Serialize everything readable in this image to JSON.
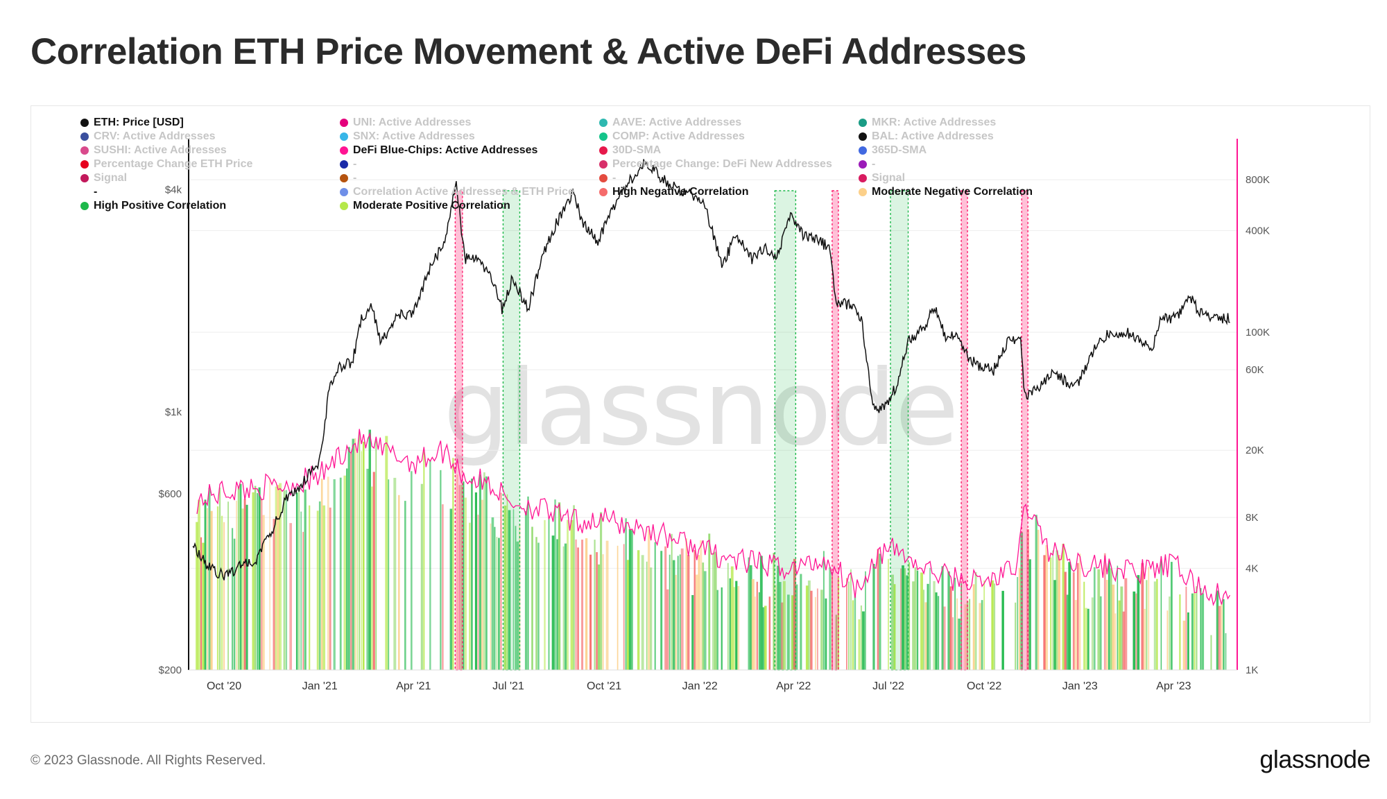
{
  "page": {
    "title": "Correlation ETH Price Movement & Active DeFi Addresses",
    "footer_copyright": "© 2023 Glassnode. All Rights Reserved.",
    "footer_logo": "glassnode",
    "watermark": "glassnode"
  },
  "legend": [
    {
      "label": "ETH: Price [USD]",
      "color": "#111111",
      "active": true
    },
    {
      "label": "UNI: Active Addresses",
      "color": "#e4007c",
      "active": false
    },
    {
      "label": "AAVE: Active Addresses",
      "color": "#2eb8b0",
      "active": false
    },
    {
      "label": "MKR: Active Addresses",
      "color": "#1a9c85",
      "active": false
    },
    {
      "label": "CRV: Active Addresses",
      "color": "#3a4f9e",
      "active": false
    },
    {
      "label": "SNX: Active Addresses",
      "color": "#37b6e8",
      "active": false
    },
    {
      "label": "COMP: Active Addresses",
      "color": "#14c48a",
      "active": false
    },
    {
      "label": "BAL: Active Addresses",
      "color": "#111111",
      "active": false
    },
    {
      "label": "SUSHI: Active Addresses",
      "color": "#d94a8c",
      "active": false
    },
    {
      "label": "DeFi Blue-Chips: Active Addresses",
      "color": "#ff1493",
      "active": true
    },
    {
      "label": "30D-SMA",
      "color": "#e6194b",
      "active": false
    },
    {
      "label": "365D-SMA",
      "color": "#4169e1",
      "active": false
    },
    {
      "label": "Percentage Change ETH Price",
      "color": "#e6001e",
      "active": false
    },
    {
      "label": "-",
      "color": "#1a2aa8",
      "active": false
    },
    {
      "label": "Percentage Change: DeFi New Addresses",
      "color": "#d8306a",
      "active": false
    },
    {
      "label": "-",
      "color": "#9b1bb8",
      "active": false
    },
    {
      "label": "Signal",
      "color": "#c2185b",
      "active": false
    },
    {
      "label": "-",
      "color": "#b5530f",
      "active": false
    },
    {
      "label": "-",
      "color": "#e44b3f",
      "active": false
    },
    {
      "label": "Signal",
      "color": "#d81b60",
      "active": false
    },
    {
      "label": "-",
      "color": null,
      "active": true
    },
    {
      "label": "Correlation Active Addresses & ETH Price",
      "color": "#6f8fe8",
      "active": false
    },
    {
      "label": "High Negative Correlation",
      "color": "#f56b6b",
      "active": true
    },
    {
      "label": "Moderate Negative Correlation",
      "color": "#fcd08a",
      "active": true
    },
    {
      "label": "High Positive Correlation",
      "color": "#1db84a",
      "active": true
    },
    {
      "label": "Moderate Positive Correlation",
      "color": "#b5e84a",
      "active": true
    }
  ],
  "chart_data": {
    "type": "line",
    "title": "Correlation ETH Price Movement & Active DeFi Addresses",
    "x_axis": {
      "ticks": [
        "Oct '20",
        "Jan '21",
        "Apr '21",
        "Jul '21",
        "Oct '21",
        "Jan '22",
        "Apr '22",
        "Jul '22",
        "Oct '22",
        "Jan '23",
        "Apr '23"
      ]
    },
    "y_left": {
      "scale": "log",
      "ticks": [
        "$200",
        "$600",
        "$1k",
        "$4k"
      ],
      "range": [
        200,
        5500
      ]
    },
    "y_right": {
      "scale": "log",
      "ticks": [
        "1K",
        "4K",
        "8K",
        "20K",
        "60K",
        "100K",
        "400K",
        "800K"
      ],
      "range": [
        1000,
        1400000
      ]
    },
    "grid": true,
    "series": [
      {
        "name": "ETH: Price [USD]",
        "color": "#111111",
        "axis": "left",
        "x": [
          "2020-09-01",
          "2020-09-15",
          "2020-10-01",
          "2020-10-15",
          "2020-11-01",
          "2020-11-15",
          "2020-12-01",
          "2020-12-15",
          "2021-01-01",
          "2021-01-10",
          "2021-01-20",
          "2021-02-01",
          "2021-02-10",
          "2021-02-20",
          "2021-03-01",
          "2021-03-15",
          "2021-04-01",
          "2021-04-15",
          "2021-05-01",
          "2021-05-12",
          "2021-05-20",
          "2021-06-01",
          "2021-06-15",
          "2021-06-25",
          "2021-07-05",
          "2021-07-20",
          "2021-08-01",
          "2021-08-15",
          "2021-09-01",
          "2021-09-10",
          "2021-09-25",
          "2021-10-10",
          "2021-10-25",
          "2021-11-10",
          "2021-11-25",
          "2021-12-05",
          "2021-12-20",
          "2022-01-05",
          "2022-01-22",
          "2022-02-05",
          "2022-02-20",
          "2022-03-05",
          "2022-03-15",
          "2022-03-29",
          "2022-04-10",
          "2022-04-25",
          "2022-05-05",
          "2022-05-12",
          "2022-05-25",
          "2022-06-05",
          "2022-06-13",
          "2022-06-18",
          "2022-07-01",
          "2022-07-10",
          "2022-07-20",
          "2022-08-05",
          "2022-08-14",
          "2022-08-25",
          "2022-09-05",
          "2022-09-15",
          "2022-09-25",
          "2022-10-10",
          "2022-10-25",
          "2022-11-05",
          "2022-11-09",
          "2022-11-20",
          "2022-12-05",
          "2022-12-20",
          "2022-12-31",
          "2023-01-10",
          "2023-01-20",
          "2023-02-01",
          "2023-02-15",
          "2023-03-01",
          "2023-03-10",
          "2023-03-20",
          "2023-04-01",
          "2023-04-10",
          "2023-04-16",
          "2023-04-25",
          "2023-05-10",
          "2023-05-25"
        ],
        "values": [
          440,
          380,
          360,
          380,
          400,
          470,
          590,
          640,
          740,
          1150,
          1330,
          1360,
          1780,
          1940,
          1540,
          1820,
          1850,
          2400,
          2900,
          4200,
          2600,
          2600,
          2300,
          1900,
          2300,
          1900,
          2550,
          3200,
          3900,
          3300,
          2900,
          3600,
          4200,
          4800,
          4300,
          4100,
          3900,
          3700,
          2500,
          3000,
          2600,
          2800,
          2600,
          3400,
          3000,
          2900,
          2800,
          2000,
          1950,
          1800,
          1200,
          1000,
          1070,
          1200,
          1550,
          1700,
          1950,
          1600,
          1600,
          1420,
          1330,
          1300,
          1580,
          1580,
          1100,
          1150,
          1280,
          1200,
          1200,
          1400,
          1570,
          1650,
          1640,
          1560,
          1450,
          1800,
          1800,
          1900,
          2090,
          1870,
          1800,
          1800
        ]
      },
      {
        "name": "DeFi Blue-Chips: Active Addresses",
        "color": "#ff1493",
        "axis": "right",
        "x": [
          "2020-09-05",
          "2020-10-01",
          "2020-11-01",
          "2020-12-01",
          "2021-01-01",
          "2021-01-20",
          "2021-02-10",
          "2021-03-01",
          "2021-04-01",
          "2021-05-01",
          "2021-05-20",
          "2021-06-15",
          "2021-07-01",
          "2021-08-01",
          "2021-09-01",
          "2021-10-01",
          "2021-11-01",
          "2021-12-01",
          "2022-01-01",
          "2022-02-01",
          "2022-03-01",
          "2022-04-01",
          "2022-05-01",
          "2022-06-01",
          "2022-06-20",
          "2022-07-10",
          "2022-08-01",
          "2022-09-01",
          "2022-10-01",
          "2022-11-01",
          "2022-11-10",
          "2022-12-01",
          "2023-01-01",
          "2023-02-01",
          "2023-03-01",
          "2023-04-01",
          "2023-05-01",
          "2023-05-25"
        ],
        "values": [
          10000,
          11500,
          12000,
          12500,
          14000,
          19000,
          23000,
          20000,
          17000,
          20000,
          14000,
          12500,
          10000,
          9000,
          7500,
          7800,
          7000,
          6200,
          5200,
          4500,
          4200,
          4000,
          4500,
          3100,
          4800,
          5200,
          4000,
          3500,
          3300,
          4000,
          10000,
          5200,
          4300,
          4000,
          3800,
          4200,
          2900,
          2600
        ]
      }
    ],
    "regions": [
      {
        "type": "High Negative Correlation",
        "start": "2021-05-11",
        "end": "2021-05-18",
        "color": "#ff1e6e"
      },
      {
        "type": "High Positive Correlation",
        "start": "2021-06-26",
        "end": "2021-07-12",
        "color": "#1db84a"
      },
      {
        "type": "High Positive Correlation",
        "start": "2022-03-14",
        "end": "2022-04-03",
        "color": "#1db84a"
      },
      {
        "type": "High Negative Correlation",
        "start": "2022-05-08",
        "end": "2022-05-14",
        "color": "#ff1e6e"
      },
      {
        "type": "High Positive Correlation",
        "start": "2022-07-03",
        "end": "2022-07-20",
        "color": "#1db84a"
      },
      {
        "type": "High Negative Correlation",
        "start": "2022-09-09",
        "end": "2022-09-15",
        "color": "#ff1e6e"
      },
      {
        "type": "High Negative Correlation",
        "start": "2022-11-06",
        "end": "2022-11-12",
        "color": "#ff1e6e"
      }
    ]
  }
}
